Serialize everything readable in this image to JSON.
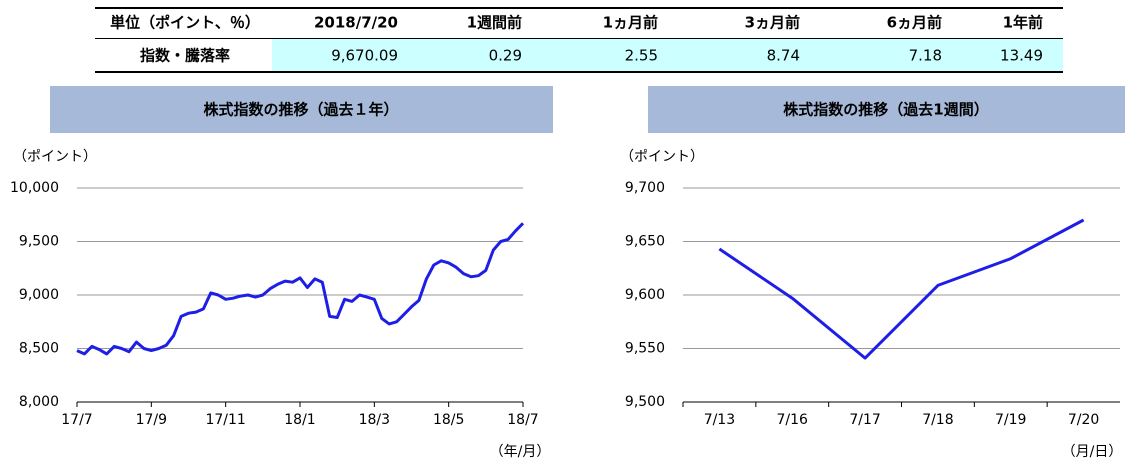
{
  "table": {
    "header": [
      "単位（ポイント、％）",
      "2018/7/20",
      "1週間前",
      "1ヵ月前",
      "3ヵ月前",
      "6ヵ月前",
      "1年前"
    ],
    "rows": [
      [
        "指数・騰落率",
        "9,670.09",
        "0.29",
        "2.55",
        "8.74",
        "7.18",
        "13.49"
      ]
    ]
  },
  "chart_data": [
    {
      "type": "line",
      "title": "株式指数の推移（過去１年）",
      "ylabel": "（ポイント）",
      "xlabel": "（年/月）",
      "x": [
        0,
        0.2,
        0.4,
        0.6,
        0.8,
        1,
        1.2,
        1.4,
        1.6,
        1.8,
        2,
        2.2,
        2.4,
        2.6,
        2.8,
        3,
        3.2,
        3.4,
        3.6,
        3.8,
        4,
        4.2,
        4.4,
        4.6,
        4.8,
        5,
        5.2,
        5.4,
        5.6,
        5.8,
        6,
        6.2,
        6.4,
        6.6,
        6.8,
        7,
        7.2,
        7.4,
        7.6,
        7.8,
        8,
        8.2,
        8.4,
        8.6,
        8.8,
        9,
        9.2,
        9.4,
        9.6,
        9.8,
        10,
        10.2,
        10.4,
        10.6,
        10.8,
        11,
        11.2,
        11.4,
        11.6,
        11.8,
        12
      ],
      "series": [
        {
          "name": "株式指数",
          "color": "#1e1ee6",
          "values": [
            8480,
            8450,
            8520,
            8490,
            8450,
            8520,
            8500,
            8470,
            8560,
            8500,
            8480,
            8500,
            8530,
            8620,
            8800,
            8830,
            8840,
            8870,
            9020,
            9000,
            8960,
            8970,
            8990,
            9000,
            8980,
            9000,
            9060,
            9100,
            9130,
            9120,
            9160,
            9070,
            9150,
            9120,
            8800,
            8790,
            8960,
            8940,
            9000,
            8980,
            8960,
            8780,
            8730,
            8750,
            8820,
            8890,
            8950,
            9150,
            9280,
            9320,
            9300,
            9260,
            9200,
            9170,
            9180,
            9230,
            9420,
            9500,
            9520,
            9600,
            9670
          ]
        }
      ],
      "xlim": [
        0,
        12
      ],
      "xticks": [
        {
          "value": 0,
          "label": "17/7"
        },
        {
          "value": 2,
          "label": "17/9"
        },
        {
          "value": 4,
          "label": "17/11"
        },
        {
          "value": 6,
          "label": "18/1"
        },
        {
          "value": 8,
          "label": "18/3"
        },
        {
          "value": 10,
          "label": "18/5"
        },
        {
          "value": 12,
          "label": "18/7"
        }
      ],
      "ylim": [
        8000,
        10000
      ],
      "yticks": [
        {
          "value": 8000,
          "label": "8,000"
        },
        {
          "value": 8500,
          "label": "8,500"
        },
        {
          "value": 9000,
          "label": "9,000"
        },
        {
          "value": 9500,
          "label": "9,500"
        },
        {
          "value": 10000,
          "label": "10,000"
        }
      ],
      "grid": true
    },
    {
      "type": "line",
      "title": "株式指数の推移（過去1週間）",
      "ylabel": "（ポイント）",
      "xlabel": "（月/日）",
      "categories": [
        "7/13",
        "7/16",
        "7/17",
        "7/18",
        "7/19",
        "7/20"
      ],
      "series": [
        {
          "name": "株式指数",
          "color": "#1e1ee6",
          "values": [
            9643,
            9597,
            9541,
            9609,
            9634,
            9670.09
          ]
        }
      ],
      "ylim": [
        9500,
        9700
      ],
      "yticks": [
        {
          "value": 9500,
          "label": "9,500"
        },
        {
          "value": 9550,
          "label": "9,550"
        },
        {
          "value": 9600,
          "label": "9,600"
        },
        {
          "value": 9650,
          "label": "9,650"
        },
        {
          "value": 9700,
          "label": "9,700"
        }
      ],
      "grid": true
    }
  ]
}
